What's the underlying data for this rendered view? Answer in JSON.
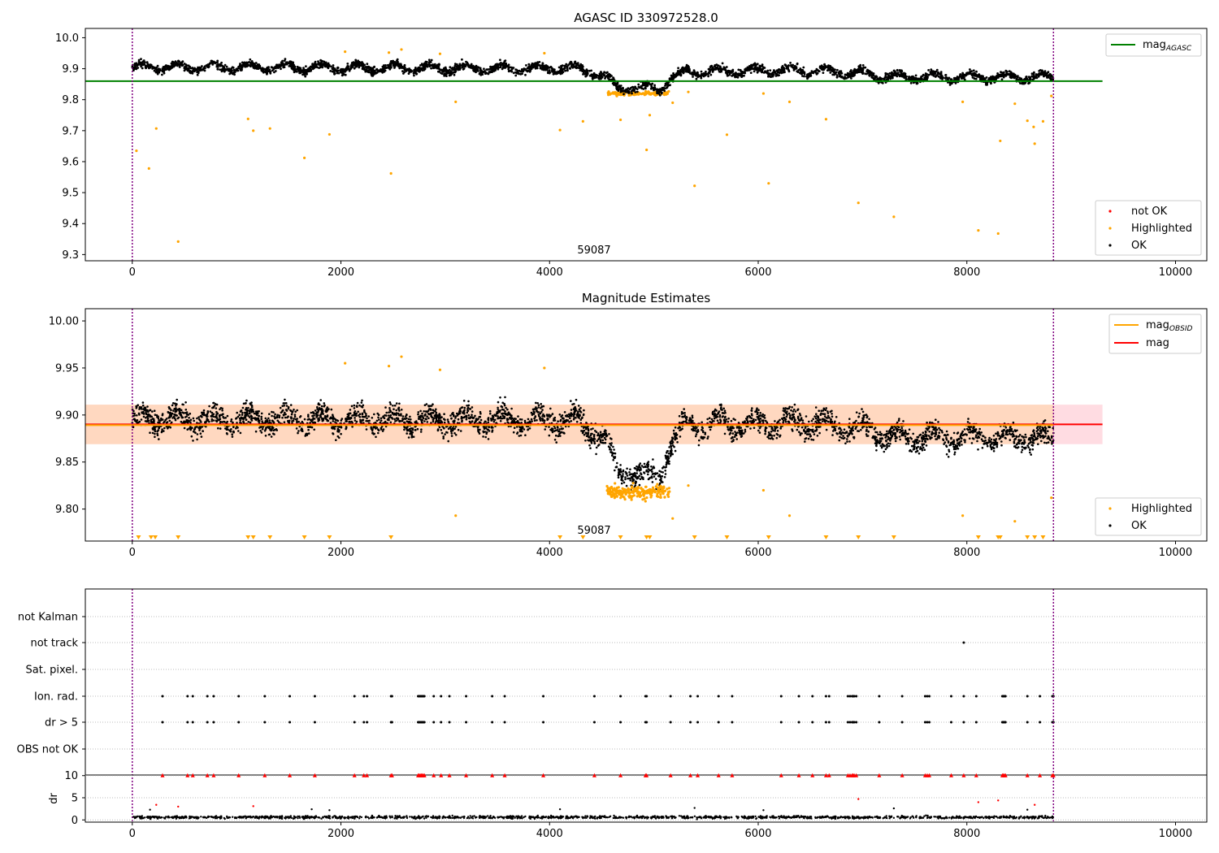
{
  "chart_data": [
    {
      "type": "scatter",
      "title": "AGASC ID 330972528.0",
      "xlim": [
        -450,
        10300
      ],
      "ylim": [
        9.28,
        10.03
      ],
      "xticks": [
        0,
        2000,
        4000,
        6000,
        8000,
        10000
      ],
      "yticks": [
        9.3,
        9.4,
        9.5,
        9.6,
        9.7,
        9.8,
        9.9,
        10.0
      ],
      "ytick_labels": [
        "9.3",
        "9.4",
        "9.5",
        "9.6",
        "9.7",
        "9.8",
        "9.9",
        "10.0"
      ],
      "vlines": [
        0,
        8830
      ],
      "obs_label": {
        "text": "59087",
        "x": 4400
      },
      "hline": {
        "name": "mag_AGASC",
        "label_main": "mag",
        "label_sub": "AGASC",
        "y": 9.86,
        "x0": -450,
        "x1": 9300,
        "color": "#008000"
      },
      "legend_lines": [
        {
          "name": "mag",
          "sub": "AGASC",
          "color": "#008000"
        }
      ],
      "legend_points": [
        {
          "label": "not OK",
          "color": "#ff0000"
        },
        {
          "label": "Highlighted",
          "color": "#ffa500"
        },
        {
          "label": "OK",
          "color": "#000000"
        }
      ],
      "series": [
        {
          "name": "OK",
          "color": "#000000",
          "baseline": [
            [
              0,
              9.905
            ],
            [
              4300,
              9.9
            ],
            [
              4550,
              9.87
            ],
            [
              4650,
              9.84
            ],
            [
              5050,
              9.835
            ],
            [
              5150,
              9.865
            ],
            [
              5300,
              9.89
            ],
            [
              6500,
              9.895
            ],
            [
              7000,
              9.885
            ],
            [
              7200,
              9.875
            ],
            [
              8830,
              9.872
            ]
          ],
          "spread": 0.018
        },
        {
          "name": "Highlighted",
          "color": "#ffa500",
          "points": [
            [
              40,
              9.635
            ],
            [
              160,
              9.578
            ],
            [
              230,
              9.707
            ],
            [
              440,
              9.342
            ],
            [
              1110,
              9.738
            ],
            [
              1160,
              9.7
            ],
            [
              1320,
              9.707
            ],
            [
              1650,
              9.612
            ],
            [
              1890,
              9.688
            ],
            [
              2040,
              9.955
            ],
            [
              2480,
              9.562
            ],
            [
              2460,
              9.952
            ],
            [
              2580,
              9.962
            ],
            [
              2950,
              9.948
            ],
            [
              3100,
              9.793
            ],
            [
              3950,
              9.95
            ],
            [
              4100,
              9.702
            ],
            [
              4320,
              9.73
            ],
            [
              4680,
              9.735
            ],
            [
              4930,
              9.638
            ],
            [
              4960,
              9.75
            ],
            [
              5180,
              9.79
            ],
            [
              5330,
              9.825
            ],
            [
              5390,
              9.522
            ],
            [
              5700,
              9.687
            ],
            [
              6050,
              9.82
            ],
            [
              6100,
              9.53
            ],
            [
              6300,
              9.793
            ],
            [
              6650,
              9.737
            ],
            [
              6960,
              9.467
            ],
            [
              7300,
              9.422
            ],
            [
              7960,
              9.793
            ],
            [
              8110,
              9.378
            ],
            [
              8300,
              9.368
            ],
            [
              8320,
              9.667
            ],
            [
              8460,
              9.787
            ],
            [
              8580,
              9.732
            ],
            [
              8640,
              9.712
            ],
            [
              8650,
              9.658
            ],
            [
              8730,
              9.73
            ],
            [
              8810,
              9.812
            ]
          ]
        }
      ]
    },
    {
      "type": "scatter",
      "title": "Magnitude Estimates",
      "xlim": [
        -450,
        10300
      ],
      "ylim": [
        9.766,
        10.013
      ],
      "xticks": [
        0,
        2000,
        4000,
        6000,
        8000,
        10000
      ],
      "yticks": [
        9.8,
        9.85,
        9.9,
        9.95,
        10.0
      ],
      "ytick_labels": [
        "9.80",
        "9.85",
        "9.90",
        "9.95",
        "10.00"
      ],
      "vlines": [
        0,
        8830
      ],
      "obs_label": {
        "text": "59087",
        "x": 4400
      },
      "band": {
        "y0": 9.869,
        "y1": 9.911
      },
      "mag_line": {
        "y": 9.89
      },
      "legend_lines": [
        {
          "name": "mag",
          "sub": "OBSID",
          "color": "#ffa500"
        },
        {
          "name": "mag",
          "sub": "",
          "color": "#ff0000"
        }
      ],
      "legend_points": [
        {
          "label": "Highlighted",
          "color": "#ffa500"
        },
        {
          "label": "OK",
          "color": "#000000"
        }
      ],
      "series": [
        {
          "name": "OK",
          "color": "#000000"
        },
        {
          "name": "Highlighted",
          "color": "#ffa500"
        }
      ],
      "marker_row_x": [
        60,
        180,
        220,
        440,
        1110,
        1160,
        1320,
        1650,
        1890,
        2480,
        4100,
        4320,
        4680,
        4930,
        4960,
        5390,
        5700,
        6100,
        6650,
        6960,
        7300,
        8110,
        8300,
        8320,
        8580,
        8650,
        8730
      ]
    },
    {
      "type": "scatter",
      "title": "",
      "xlim": [
        -450,
        10300
      ],
      "xticks": [
        0,
        2000,
        4000,
        6000,
        8000,
        10000
      ],
      "vlines": [
        0,
        8830
      ],
      "flag_rows": [
        "not Kalman",
        "not track",
        "Sat. pixel.",
        "Ion. rad.",
        "dr > 5",
        "OBS not OK"
      ],
      "flag_points": {
        "not track": [
          7970
        ],
        "Ion. rad.": [
          290,
          530,
          580,
          720,
          780,
          1020,
          1270,
          1510,
          1750,
          2130,
          2220,
          2250,
          2480,
          2490,
          2740,
          2750,
          2760,
          2770,
          2780,
          2790,
          2800,
          2890,
          2960,
          3040,
          3200,
          3450,
          3570,
          3940,
          4430,
          4680,
          4920,
          4930,
          5160,
          5350,
          5420,
          5620,
          5750,
          6220,
          6390,
          6520,
          6650,
          6680,
          6860,
          6880,
          6900,
          6910,
          6920,
          6940,
          7160,
          7380,
          7600,
          7620,
          7640,
          7850,
          7970,
          8090,
          8340,
          8350,
          8360,
          8370,
          8580,
          8700,
          8820,
          8830
        ],
        "dr > 5": [
          290,
          530,
          580,
          720,
          780,
          1020,
          1270,
          1510,
          1750,
          2130,
          2220,
          2250,
          2480,
          2490,
          2740,
          2750,
          2760,
          2770,
          2780,
          2790,
          2800,
          2890,
          2960,
          3040,
          3200,
          3450,
          3570,
          3940,
          4430,
          4680,
          4920,
          4930,
          5160,
          5350,
          5420,
          5620,
          5750,
          6220,
          6390,
          6520,
          6650,
          6680,
          6860,
          6880,
          6900,
          6910,
          6920,
          6940,
          7160,
          7380,
          7600,
          7620,
          7640,
          7850,
          7970,
          8090,
          8340,
          8350,
          8360,
          8370,
          8580,
          8700,
          8820,
          8830
        ]
      },
      "dr": {
        "ylabel": "dr",
        "ylim": [
          -0.5,
          10.5
        ],
        "yticks": [
          0,
          5,
          10
        ],
        "ytick_labels": [
          "0",
          "5",
          "10"
        ],
        "clipped_x": [
          290,
          530,
          580,
          720,
          780,
          1020,
          1270,
          1510,
          1750,
          2130,
          2220,
          2250,
          2480,
          2490,
          2740,
          2750,
          2760,
          2770,
          2780,
          2790,
          2800,
          2890,
          2960,
          3040,
          3200,
          3450,
          3570,
          3940,
          4430,
          4680,
          4920,
          4930,
          5160,
          5350,
          5420,
          5620,
          5750,
          6220,
          6390,
          6520,
          6650,
          6680,
          6860,
          6880,
          6900,
          6910,
          6920,
          6940,
          7160,
          7380,
          7600,
          7620,
          7640,
          7850,
          7970,
          8090,
          8340,
          8350,
          8360,
          8370,
          8580,
          8700,
          8820,
          8830
        ],
        "mid_points": [
          [
            230,
            3.4
          ],
          [
            440,
            3.0
          ],
          [
            1160,
            3.1
          ],
          [
            6960,
            4.7
          ],
          [
            8110,
            4.0
          ],
          [
            8300,
            4.4
          ],
          [
            8650,
            3.4
          ]
        ],
        "low_points": [
          [
            170,
            2.3
          ],
          [
            1720,
            2.4
          ],
          [
            1890,
            2.2
          ],
          [
            4100,
            2.4
          ],
          [
            5390,
            2.7
          ],
          [
            6050,
            2.2
          ],
          [
            7300,
            2.6
          ],
          [
            8580,
            2.3
          ]
        ]
      }
    }
  ]
}
